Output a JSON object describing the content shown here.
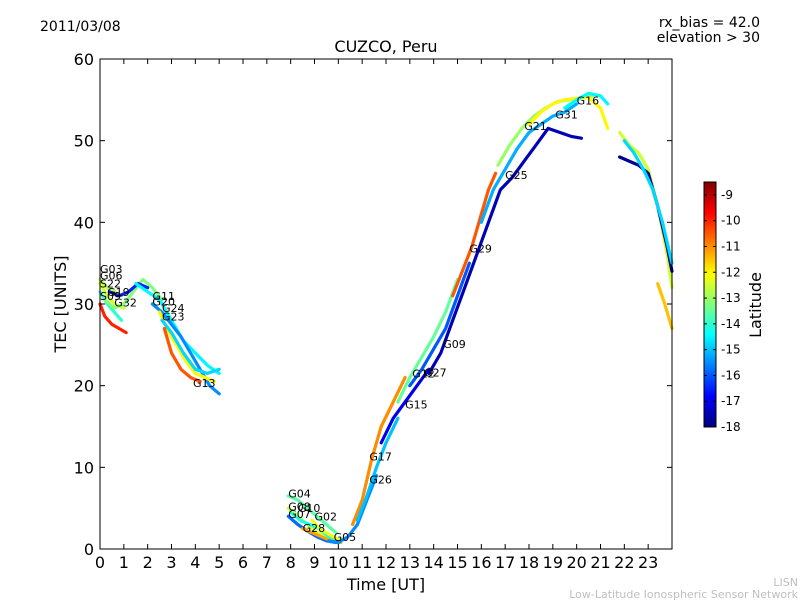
{
  "chart_data": {
    "type": "scatter",
    "date": "2011/03/08",
    "title": "CUZCO, Peru",
    "rx_bias": "rx_bias = 42.0",
    "elevation": "elevation > 30",
    "xlabel": "Time [UT]",
    "ylabel": "TEC [UNITS]",
    "xlim": [
      0,
      24
    ],
    "ylim": [
      0,
      60
    ],
    "xticks": [
      "0",
      "1",
      "2",
      "3",
      "4",
      "5",
      "6",
      "7",
      "8",
      "9",
      "10",
      "11",
      "12",
      "13",
      "14",
      "15",
      "16",
      "17",
      "18",
      "19",
      "20",
      "21",
      "22",
      "23"
    ],
    "yticks": [
      "0",
      "10",
      "20",
      "30",
      "40",
      "50",
      "60"
    ],
    "colorbar": {
      "label": "Latitude",
      "range": [
        -18,
        -8.5
      ],
      "ticks": [
        "-9",
        "-10",
        "-11",
        "-12",
        "-13",
        "-14",
        "-15",
        "-16",
        "-17",
        "-18"
      ],
      "colormap": [
        "#00007f",
        "#0000ff",
        "#007fff",
        "#00ffff",
        "#7fff7f",
        "#ffff00",
        "#ff7f00",
        "#ff0000",
        "#7f0000"
      ]
    },
    "series": [
      {
        "name": "G03",
        "lat": -12.8,
        "label": {
          "t": 0.0,
          "y": 34.3
        },
        "points": [
          [
            0.0,
            33.0
          ],
          [
            0.3,
            32.0
          ],
          [
            0.6,
            31.5
          ],
          [
            0.9,
            31.0
          ]
        ]
      },
      {
        "name": "G06",
        "lat": -12.5,
        "label": {
          "t": 0.0,
          "y": 33.5
        },
        "points": [
          [
            0.0,
            32.5
          ],
          [
            0.3,
            31.0
          ],
          [
            0.6,
            30.0
          ],
          [
            1.0,
            29.5
          ]
        ]
      },
      {
        "name": "S22",
        "lat": -14.0,
        "label": {
          "t": 0.0,
          "y": 32.5
        },
        "points": [
          [
            0.0,
            31.5
          ],
          [
            0.3,
            30.0
          ],
          [
            0.6,
            29.0
          ],
          [
            0.9,
            28.0
          ]
        ]
      },
      {
        "name": "G19",
        "lat": -13.2,
        "label": {
          "t": 0.3,
          "y": 31.5
        },
        "points": [
          [
            0.2,
            30.5
          ],
          [
            0.6,
            29.5
          ],
          [
            1.0,
            30.0
          ],
          [
            1.4,
            31.5
          ],
          [
            1.8,
            33.0
          ],
          [
            2.2,
            32.0
          ],
          [
            2.6,
            30.5
          ]
        ]
      },
      {
        "name": "G32",
        "lat": -16.5,
        "label": {
          "t": 0.6,
          "y": 30.2
        },
        "points": [
          [
            0.4,
            31.5
          ],
          [
            0.8,
            31.0
          ],
          [
            1.2,
            31.5
          ],
          [
            1.6,
            32.5
          ],
          [
            2.0,
            32.0
          ]
        ]
      },
      {
        "name": "S09",
        "lat": -10.0,
        "label": {
          "t": 0.0,
          "y": 31.0
        },
        "points": [
          [
            0.0,
            30.0
          ],
          [
            0.2,
            28.5
          ],
          [
            0.5,
            27.5
          ],
          [
            0.8,
            27.0
          ],
          [
            1.1,
            26.5
          ]
        ]
      },
      {
        "name": "G11",
        "lat": -14.5,
        "label": {
          "t": 2.2,
          "y": 31.0
        },
        "points": [
          [
            1.5,
            32.5
          ],
          [
            2.0,
            31.5
          ],
          [
            2.5,
            30.5
          ],
          [
            3.0,
            28.0
          ],
          [
            3.5,
            25.5
          ],
          [
            4.0,
            24.0
          ],
          [
            4.5,
            22.5
          ],
          [
            5.0,
            21.5
          ]
        ]
      },
      {
        "name": "G20",
        "lat": -15.5,
        "label": {
          "t": 2.2,
          "y": 30.3
        },
        "points": [
          [
            2.2,
            30.0
          ],
          [
            2.6,
            29.0
          ],
          [
            3.0,
            27.5
          ],
          [
            3.4,
            26.0
          ],
          [
            3.8,
            24.0
          ],
          [
            4.2,
            22.0
          ],
          [
            4.6,
            20.0
          ],
          [
            5.0,
            19.0
          ]
        ]
      },
      {
        "name": "G24",
        "lat": -12.0,
        "label": {
          "t": 2.6,
          "y": 29.5
        },
        "points": [
          [
            2.5,
            29.0
          ],
          [
            2.8,
            27.0
          ],
          [
            3.2,
            25.0
          ],
          [
            3.6,
            23.0
          ],
          [
            4.0,
            21.5
          ],
          [
            4.4,
            21.0
          ],
          [
            4.8,
            20.5
          ]
        ]
      },
      {
        "name": "G23",
        "lat": -14.8,
        "label": {
          "t": 2.6,
          "y": 28.5
        },
        "points": [
          [
            2.6,
            28.0
          ],
          [
            3.0,
            26.5
          ],
          [
            3.5,
            24.0
          ],
          [
            4.0,
            22.0
          ],
          [
            4.5,
            21.5
          ],
          [
            5.0,
            22.0
          ]
        ]
      },
      {
        "name": "G13",
        "lat": -10.5,
        "label": {
          "t": 3.9,
          "y": 20.3
        },
        "points": [
          [
            2.7,
            27.0
          ],
          [
            3.0,
            24.0
          ],
          [
            3.4,
            22.0
          ],
          [
            3.8,
            21.0
          ],
          [
            4.2,
            20.5
          ]
        ]
      },
      {
        "name": "G04",
        "lat": -13.6,
        "label": {
          "t": 7.9,
          "y": 6.8
        },
        "points": [
          [
            7.9,
            6.5
          ],
          [
            8.3,
            6.0
          ],
          [
            8.7,
            5.0
          ],
          [
            9.1,
            4.0
          ],
          [
            9.5,
            3.0
          ],
          [
            9.9,
            2.0
          ]
        ]
      },
      {
        "name": "G08",
        "lat": -12.5,
        "label": {
          "t": 7.9,
          "y": 5.2
        },
        "points": [
          [
            7.9,
            5.0
          ],
          [
            8.3,
            4.0
          ],
          [
            8.7,
            3.0
          ],
          [
            9.1,
            2.0
          ],
          [
            9.5,
            1.5
          ],
          [
            9.9,
            1.0
          ]
        ]
      },
      {
        "name": "G10",
        "lat": -14.2,
        "label": {
          "t": 8.3,
          "y": 5.0
        },
        "points": [
          [
            8.0,
            4.5
          ],
          [
            8.4,
            3.5
          ],
          [
            8.8,
            3.0
          ],
          [
            9.2,
            2.5
          ],
          [
            9.6,
            1.5
          ],
          [
            10.0,
            1.2
          ]
        ]
      },
      {
        "name": "G07",
        "lat": -15.8,
        "label": {
          "t": 7.9,
          "y": 4.3
        },
        "points": [
          [
            7.9,
            4.0
          ],
          [
            8.3,
            3.0
          ],
          [
            8.7,
            2.2
          ],
          [
            9.1,
            1.5
          ],
          [
            9.5,
            1.0
          ],
          [
            9.9,
            0.8
          ]
        ]
      },
      {
        "name": "G02",
        "lat": -12.2,
        "label": {
          "t": 9.0,
          "y": 4.0
        },
        "points": [
          [
            8.9,
            3.5
          ],
          [
            9.2,
            2.5
          ],
          [
            9.5,
            2.0
          ],
          [
            9.8,
            1.5
          ],
          [
            10.1,
            1.0
          ]
        ]
      },
      {
        "name": "G28",
        "lat": -11.2,
        "label": {
          "t": 8.5,
          "y": 2.6
        },
        "points": [
          [
            8.5,
            2.5
          ],
          [
            8.9,
            2.0
          ],
          [
            9.3,
            1.5
          ],
          [
            9.7,
            1.0
          ],
          [
            10.1,
            0.8
          ]
        ]
      },
      {
        "name": "G05",
        "lat": -15.5,
        "label": {
          "t": 9.8,
          "y": 1.5
        },
        "points": [
          [
            9.6,
            1.0
          ],
          [
            10.0,
            0.8
          ],
          [
            10.4,
            1.5
          ],
          [
            10.8,
            3.0
          ],
          [
            11.2,
            6.0
          ],
          [
            11.6,
            9.0
          ]
        ]
      },
      {
        "name": "G17",
        "lat": -11.0,
        "label": {
          "t": 11.3,
          "y": 11.3
        },
        "points": [
          [
            10.6,
            3.0
          ],
          [
            11.0,
            6.0
          ],
          [
            11.4,
            11.0
          ],
          [
            11.8,
            15.0
          ],
          [
            12.3,
            18.0
          ],
          [
            12.8,
            21.0
          ]
        ]
      },
      {
        "name": "G26",
        "lat": -15.0,
        "label": {
          "t": 11.3,
          "y": 8.5
        },
        "points": [
          [
            10.8,
            3.5
          ],
          [
            11.2,
            6.5
          ],
          [
            11.6,
            10.0
          ],
          [
            12.0,
            13.0
          ],
          [
            12.5,
            16.0
          ]
        ]
      },
      {
        "name": "G15",
        "lat": -17.0,
        "label": {
          "t": 12.8,
          "y": 17.7
        },
        "points": [
          [
            11.8,
            13.0
          ],
          [
            12.3,
            16.0
          ],
          [
            12.8,
            18.0
          ],
          [
            13.3,
            20.0
          ],
          [
            13.8,
            22.0
          ]
        ]
      },
      {
        "name": "G12",
        "lat": -13.5,
        "label": {
          "t": 13.1,
          "y": 21.5
        },
        "points": [
          [
            12.5,
            18.0
          ],
          [
            13.0,
            21.0
          ],
          [
            13.5,
            23.5
          ],
          [
            14.0,
            26.0
          ],
          [
            14.5,
            29.0
          ],
          [
            15.0,
            33.0
          ]
        ]
      },
      {
        "name": "G27",
        "lat": -16.0,
        "label": {
          "t": 13.6,
          "y": 21.6
        },
        "points": [
          [
            13.0,
            20.0
          ],
          [
            13.5,
            22.0
          ],
          [
            14.0,
            24.5
          ],
          [
            14.5,
            27.0
          ],
          [
            15.0,
            31.0
          ],
          [
            15.5,
            35.0
          ]
        ]
      },
      {
        "name": "G09",
        "lat": -17.5,
        "label": {
          "t": 14.4,
          "y": 25.1
        },
        "points": [
          [
            13.8,
            21.5
          ],
          [
            14.3,
            24.0
          ],
          [
            14.8,
            28.0
          ],
          [
            15.3,
            32.0
          ],
          [
            15.8,
            36.0
          ],
          [
            16.3,
            40.0
          ],
          [
            16.8,
            44.0
          ],
          [
            17.3,
            45.5
          ],
          [
            17.8,
            47.5
          ],
          [
            18.3,
            49.5
          ],
          [
            18.8,
            51.5
          ],
          [
            19.3,
            51.0
          ],
          [
            19.8,
            50.5
          ],
          [
            20.2,
            50.3
          ]
        ]
      },
      {
        "name": "G29",
        "lat": -10.5,
        "label": {
          "t": 15.5,
          "y": 36.8
        },
        "points": [
          [
            14.8,
            31.0
          ],
          [
            15.2,
            34.0
          ],
          [
            15.6,
            37.0
          ],
          [
            16.0,
            41.0
          ],
          [
            16.3,
            44.0
          ],
          [
            16.6,
            46.0
          ]
        ]
      },
      {
        "name": "G25",
        "lat": -15.2,
        "label": {
          "t": 17.0,
          "y": 45.8
        },
        "points": [
          [
            16.0,
            40.0
          ],
          [
            16.5,
            44.0
          ],
          [
            17.0,
            46.5
          ],
          [
            17.5,
            49.0
          ],
          [
            18.0,
            51.0
          ],
          [
            18.5,
            52.0
          ],
          [
            19.0,
            53.0
          ],
          [
            19.5,
            53.5
          ],
          [
            20.0,
            54.5
          ]
        ]
      },
      {
        "name": "G21",
        "lat": -13.0,
        "label": {
          "t": 17.8,
          "y": 51.8
        },
        "points": [
          [
            16.7,
            47.0
          ],
          [
            17.2,
            49.5
          ],
          [
            17.7,
            51.5
          ],
          [
            18.2,
            53.0
          ],
          [
            18.7,
            54.0
          ],
          [
            19.2,
            54.8
          ],
          [
            19.7,
            55.0
          ],
          [
            20.2,
            55.2
          ],
          [
            20.7,
            55.5
          ]
        ]
      },
      {
        "name": "G31",
        "lat": -12.0,
        "label": {
          "t": 19.1,
          "y": 53.2
        },
        "points": [
          [
            18.0,
            52.0
          ],
          [
            18.5,
            53.5
          ],
          [
            19.0,
            54.5
          ],
          [
            19.5,
            55.0
          ],
          [
            20.0,
            55.2
          ],
          [
            20.5,
            55.3
          ],
          [
            21.0,
            54.0
          ],
          [
            21.3,
            51.5
          ]
        ]
      },
      {
        "name": "G16",
        "lat": -14.5,
        "label": {
          "t": 20.0,
          "y": 54.9
        },
        "points": [
          [
            19.5,
            54.0
          ],
          [
            20.0,
            55.0
          ],
          [
            20.5,
            55.8
          ],
          [
            21.0,
            55.5
          ],
          [
            21.3,
            54.5
          ]
        ]
      },
      {
        "name": "",
        "lat": -12.5,
        "label": null,
        "points": [
          [
            21.8,
            51.0
          ],
          [
            22.2,
            49.5
          ],
          [
            22.6,
            48.5
          ],
          [
            23.0,
            46.5
          ],
          [
            23.4,
            42.0
          ],
          [
            23.8,
            36.0
          ],
          [
            24.0,
            32.0
          ]
        ]
      },
      {
        "name": "",
        "lat": -17.8,
        "label": null,
        "points": [
          [
            21.8,
            48.0
          ],
          [
            22.2,
            47.5
          ],
          [
            22.6,
            47.0
          ],
          [
            23.0,
            46.0
          ],
          [
            23.4,
            42.0
          ],
          [
            23.8,
            37.0
          ],
          [
            24.0,
            34.0
          ]
        ]
      },
      {
        "name": "",
        "lat": -14.8,
        "label": null,
        "points": [
          [
            22.0,
            50.0
          ],
          [
            22.4,
            48.5
          ],
          [
            22.8,
            46.5
          ],
          [
            23.2,
            44.0
          ],
          [
            23.6,
            40.0
          ],
          [
            24.0,
            35.0
          ]
        ]
      },
      {
        "name": "",
        "lat": -11.5,
        "label": null,
        "points": [
          [
            23.4,
            32.5
          ],
          [
            23.7,
            30.0
          ],
          [
            24.0,
            27.0
          ]
        ]
      }
    ]
  },
  "footer": {
    "credit_short": "LISN",
    "credit_long": "Low-Latitude Ionospheric Sensor Network"
  }
}
